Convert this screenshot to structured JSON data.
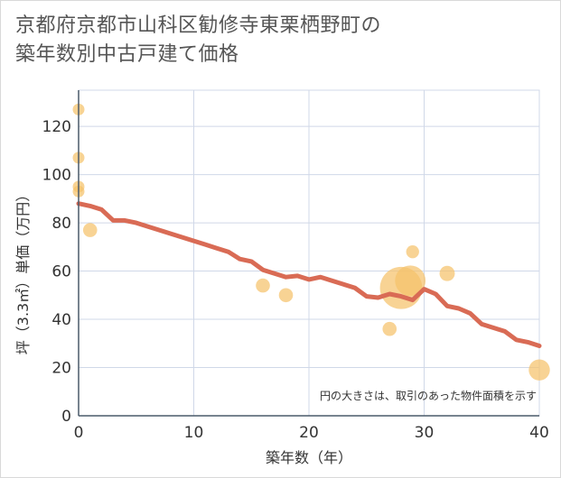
{
  "chart_data": {
    "type": "scatter",
    "title_lines": [
      "京都府京都市山科区勧修寺東栗栖野町の",
      "築年数別中古戸建て価格"
    ],
    "xlabel": "築年数（年）",
    "ylabel": "坪（3.3㎡）単価（万円）",
    "xlim": [
      0,
      40
    ],
    "ylim": [
      0,
      135
    ],
    "x_ticks": [
      0,
      10,
      20,
      30,
      40
    ],
    "y_ticks": [
      0,
      20,
      40,
      60,
      80,
      100,
      120
    ],
    "grid": true,
    "note": "円の大きさは、取引のあった物件面積を示す",
    "colors": {
      "bubble": "#f5c26b",
      "trend": "#d96b55",
      "grid": "#d0d8e8",
      "axis": "#4a5a6a"
    },
    "bubbles": [
      {
        "x": 0,
        "y": 127,
        "size": 1
      },
      {
        "x": 0,
        "y": 107,
        "size": 1
      },
      {
        "x": 0,
        "y": 95,
        "size": 1
      },
      {
        "x": 0,
        "y": 93,
        "size": 1
      },
      {
        "x": 1,
        "y": 77,
        "size": 1.2
      },
      {
        "x": 16,
        "y": 54,
        "size": 1.2
      },
      {
        "x": 18,
        "y": 50,
        "size": 1.2
      },
      {
        "x": 27,
        "y": 36,
        "size": 1.2
      },
      {
        "x": 28,
        "y": 53,
        "size": 3.6
      },
      {
        "x": 28.8,
        "y": 56,
        "size": 2.6
      },
      {
        "x": 29,
        "y": 68,
        "size": 1.1
      },
      {
        "x": 32,
        "y": 59,
        "size": 1.3
      },
      {
        "x": 40,
        "y": 19,
        "size": 1.8
      }
    ],
    "trend_line": {
      "x": [
        0,
        1,
        2,
        3,
        4,
        5,
        6,
        7,
        8,
        9,
        10,
        11,
        12,
        13,
        14,
        15,
        16,
        17,
        18,
        19,
        20,
        21,
        22,
        23,
        24,
        25,
        26,
        27,
        28,
        29,
        30,
        31,
        32,
        33,
        34,
        35,
        36,
        37,
        38,
        39,
        40
      ],
      "y": [
        88,
        87,
        85.5,
        81,
        81,
        80,
        78.5,
        77,
        75.5,
        74,
        72.5,
        71,
        69.5,
        68,
        65,
        64,
        60.5,
        59,
        57.5,
        58,
        56.5,
        57.5,
        56,
        54.5,
        53,
        49.5,
        49,
        50.5,
        49.5,
        48,
        52.5,
        50.5,
        45.5,
        44.5,
        42.5,
        38,
        36.5,
        35,
        31.5,
        30.5,
        29
      ]
    }
  }
}
